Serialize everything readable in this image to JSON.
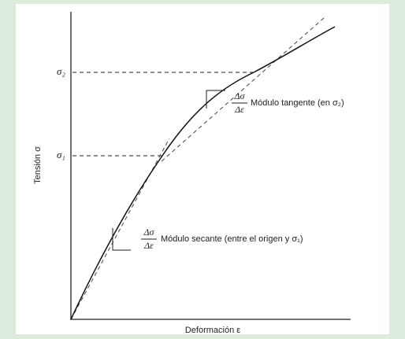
{
  "diagram": {
    "y_axis_label": "Tensión σ",
    "x_axis_label": "Deformación ε",
    "levels": [
      "σ₂",
      "σ₁"
    ],
    "tangent": {
      "numerator": "Δσ",
      "denominator": "Δε",
      "label": "Módulo tangente (en σ₂)"
    },
    "secant": {
      "numerator": "Δσ",
      "denominator": "Δε",
      "label": "Módulo secante (entre el origen y σ₁)"
    }
  }
}
